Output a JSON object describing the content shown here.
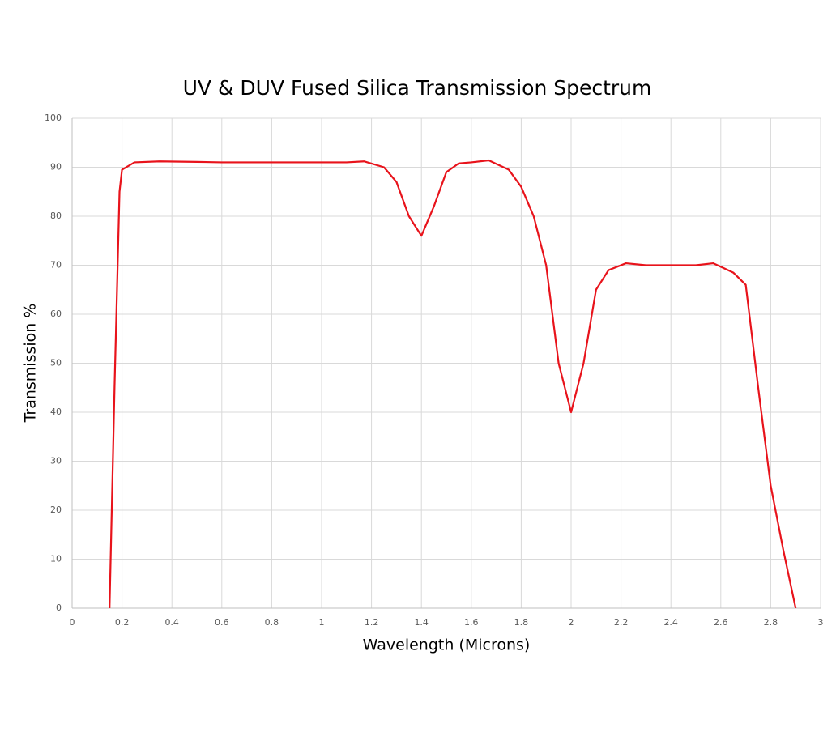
{
  "chart_data": {
    "type": "line",
    "title": "UV & DUV Fused Silica Transmission Spectrum",
    "x_label": "Wavelength (Microns)",
    "y_label": "Transmission %",
    "x": [
      0.15,
      0.17,
      0.19,
      0.2,
      0.25,
      0.35,
      0.5,
      0.6,
      0.8,
      1.0,
      1.1,
      1.17,
      1.25,
      1.3,
      1.35,
      1.4,
      1.45,
      1.5,
      1.55,
      1.6,
      1.67,
      1.75,
      1.8,
      1.85,
      1.9,
      1.95,
      2.0,
      2.05,
      2.1,
      2.15,
      2.22,
      2.3,
      2.5,
      2.57,
      2.65,
      2.7,
      2.75,
      2.8,
      2.85,
      2.9
    ],
    "series": [
      {
        "name": "Transmission",
        "color": "#e8131b",
        "values": [
          0,
          45,
          85,
          89.5,
          91,
          91.2,
          91.1,
          91,
          91,
          91,
          91,
          91.2,
          90,
          87,
          80,
          76,
          82,
          89,
          90.8,
          91,
          91.4,
          89.5,
          86,
          80,
          70,
          50,
          40,
          50,
          65,
          69,
          70.4,
          70,
          70,
          70.4,
          68.5,
          66,
          45,
          25,
          12,
          0
        ]
      }
    ],
    "xlim": [
      0,
      3
    ],
    "xticks": [
      0,
      0.2,
      0.4,
      0.6,
      0.8,
      1,
      1.2,
      1.4,
      1.6,
      1.8,
      2,
      2.2,
      2.4,
      2.6,
      2.8,
      3
    ],
    "ylim": [
      0,
      100
    ],
    "yticks": [
      0,
      10,
      20,
      30,
      40,
      50,
      60,
      70,
      80,
      90,
      100
    ],
    "grid": true
  }
}
